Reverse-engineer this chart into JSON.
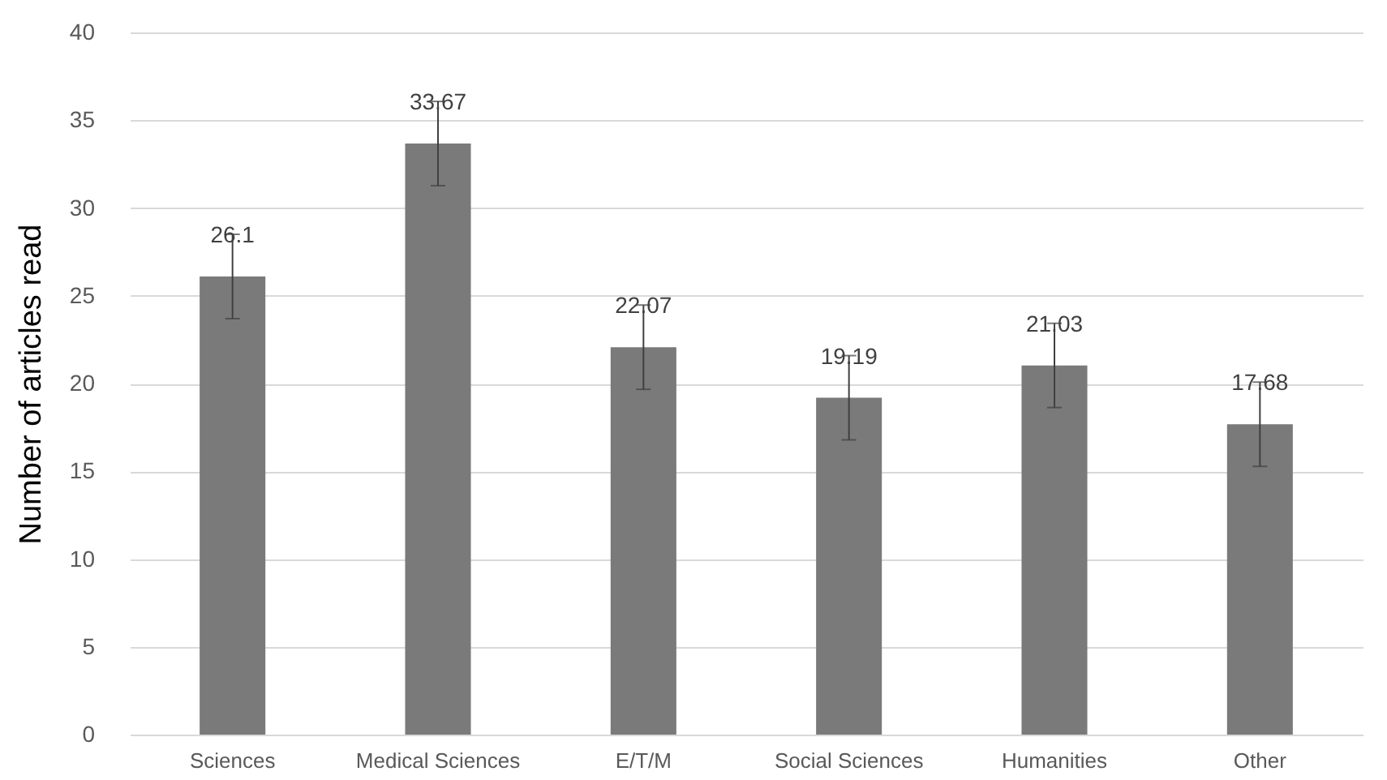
{
  "chart_data": {
    "type": "bar",
    "ylabel": "Number of articles read",
    "categories": [
      "Sciences",
      "Medical Sciences",
      "E/T/M",
      "Social Sciences",
      "Humanities",
      "Other"
    ],
    "values": [
      26.1,
      33.67,
      22.07,
      19.19,
      21.03,
      17.68
    ],
    "errors": [
      2.4,
      2.4,
      2.4,
      2.4,
      2.4,
      2.4
    ],
    "color": "#7a7a7a",
    "ylim": [
      0,
      40
    ],
    "yticks": [
      0,
      5,
      10,
      15,
      20,
      25,
      30,
      35,
      40
    ],
    "grid": "y",
    "data_labels": true
  }
}
